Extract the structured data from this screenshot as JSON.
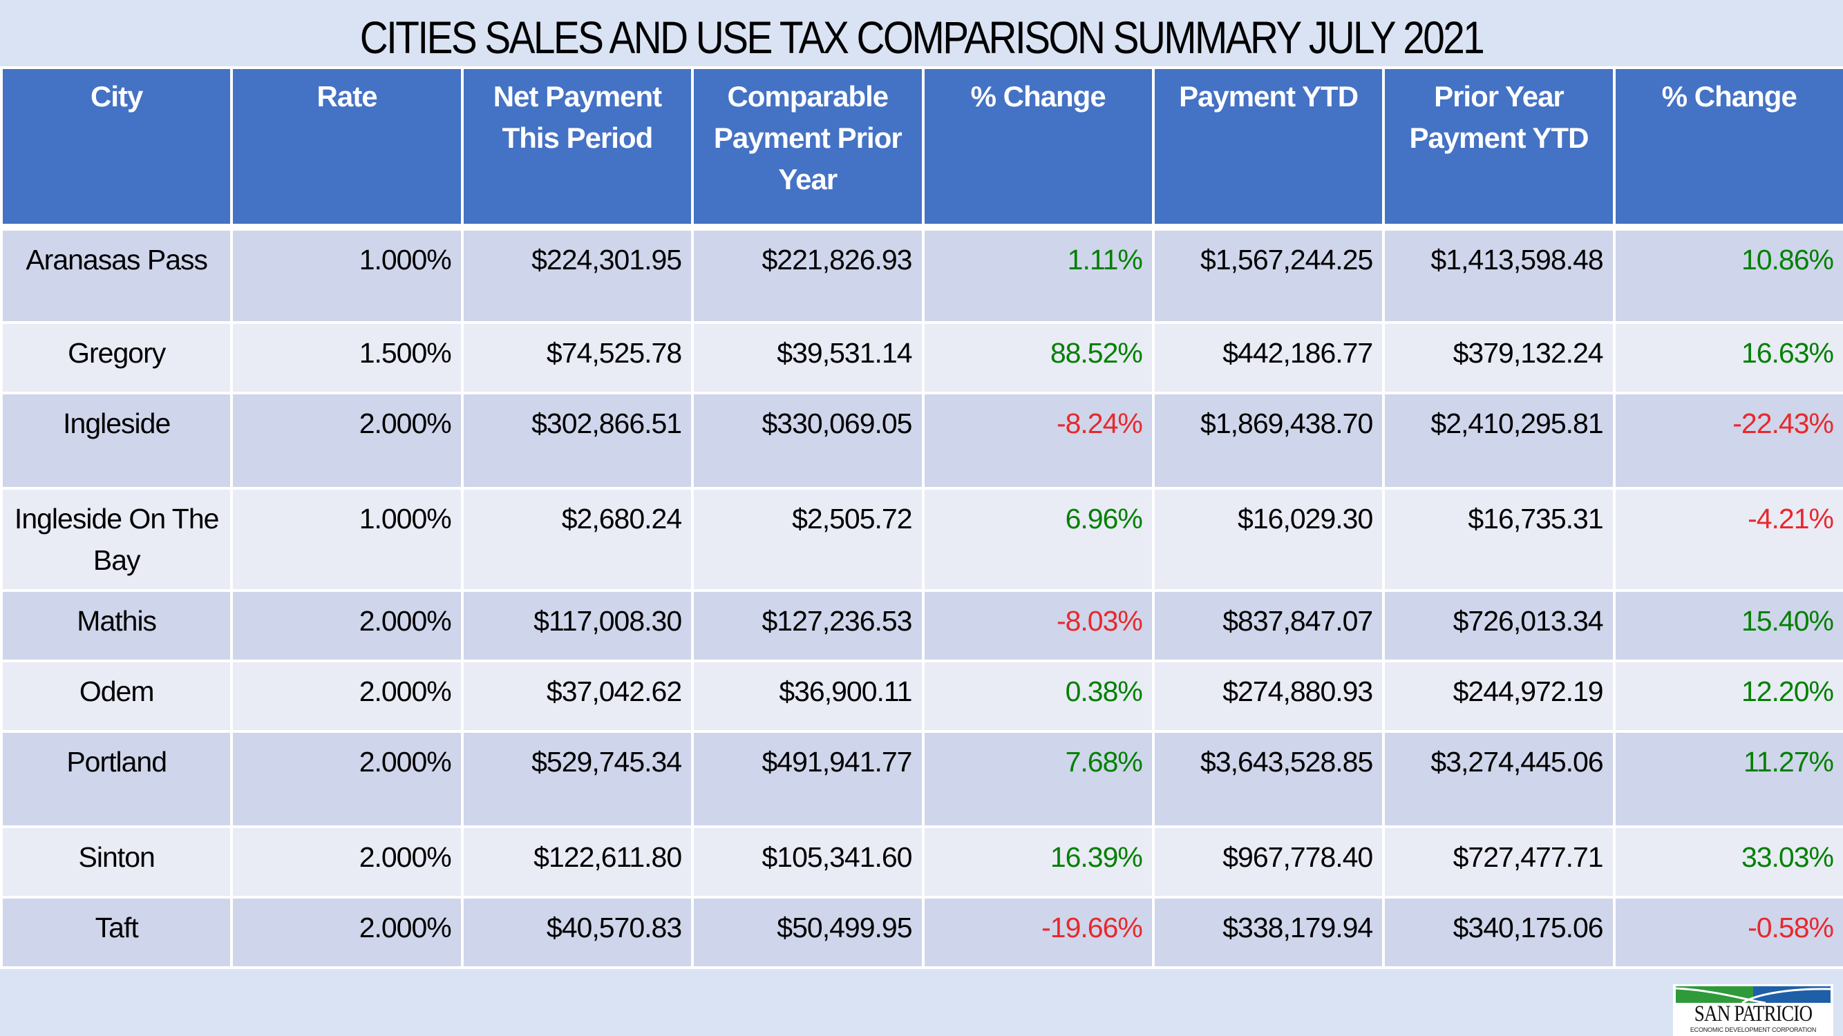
{
  "title": "CITIES SALES AND USE TAX COMPARISON SUMMARY JULY 2021",
  "colors": {
    "background": "#dae3f3",
    "header": "#4472c4",
    "row_dark": "#cfd5ea",
    "row_light": "#e9ebf5",
    "positive": "#008000",
    "negative": "#e8282c"
  },
  "table": {
    "headers": [
      "City",
      "Rate",
      "Net Payment This Period",
      "Comparable Payment Prior Year",
      "% Change",
      "Payment YTD",
      "Prior Year Payment YTD",
      "% Change"
    ],
    "rows": [
      {
        "city": "Aranasas Pass",
        "rate": "1.000%",
        "net_payment": "$224,301.95",
        "comparable_prior": "$221,826.93",
        "pct_change": "1.11%",
        "payment_ytd": "$1,567,244.25",
        "prior_ytd": "$1,413,598.48",
        "ytd_pct_change": "10.86%"
      },
      {
        "city": "Gregory",
        "rate": "1.500%",
        "net_payment": "$74,525.78",
        "comparable_prior": "$39,531.14",
        "pct_change": "88.52%",
        "payment_ytd": "$442,186.77",
        "prior_ytd": "$379,132.24",
        "ytd_pct_change": "16.63%"
      },
      {
        "city": "Ingleside",
        "rate": "2.000%",
        "net_payment": "$302,866.51",
        "comparable_prior": "$330,069.05",
        "pct_change": "-8.24%",
        "payment_ytd": "$1,869,438.70",
        "prior_ytd": "$2,410,295.81",
        "ytd_pct_change": "-22.43%"
      },
      {
        "city": "Ingleside On The Bay",
        "rate": "1.000%",
        "net_payment": "$2,680.24",
        "comparable_prior": "$2,505.72",
        "pct_change": "6.96%",
        "payment_ytd": "$16,029.30",
        "prior_ytd": "$16,735.31",
        "ytd_pct_change": "-4.21%"
      },
      {
        "city": "Mathis",
        "rate": "2.000%",
        "net_payment": "$117,008.30",
        "comparable_prior": "$127,236.53",
        "pct_change": "-8.03%",
        "payment_ytd": "$837,847.07",
        "prior_ytd": "$726,013.34",
        "ytd_pct_change": "15.40%"
      },
      {
        "city": "Odem",
        "rate": "2.000%",
        "net_payment": "$37,042.62",
        "comparable_prior": "$36,900.11",
        "pct_change": "0.38%",
        "payment_ytd": "$274,880.93",
        "prior_ytd": "$244,972.19",
        "ytd_pct_change": "12.20%"
      },
      {
        "city": "Portland",
        "rate": "2.000%",
        "net_payment": "$529,745.34",
        "comparable_prior": "$491,941.77",
        "pct_change": "7.68%",
        "payment_ytd": "$3,643,528.85",
        "prior_ytd": "$3,274,445.06",
        "ytd_pct_change": "11.27%"
      },
      {
        "city": "Sinton",
        "rate": "2.000%",
        "net_payment": "$122,611.80",
        "comparable_prior": "$105,341.60",
        "pct_change": "16.39%",
        "payment_ytd": "$967,778.40",
        "prior_ytd": "$727,477.71",
        "ytd_pct_change": "33.03%"
      },
      {
        "city": "Taft",
        "rate": "2.000%",
        "net_payment": "$40,570.83",
        "comparable_prior": "$50,499.95",
        "pct_change": "-19.66%",
        "payment_ytd": "$338,179.94",
        "prior_ytd": "$340,175.06",
        "ytd_pct_change": "-0.58%"
      }
    ]
  },
  "logo": {
    "name": "SAN PATRICIO",
    "subtitle": "ECONOMIC DEVELOPMENT CORPORATION",
    "colors": {
      "green": "#2e9a3a",
      "blue": "#1f5fa8"
    }
  }
}
